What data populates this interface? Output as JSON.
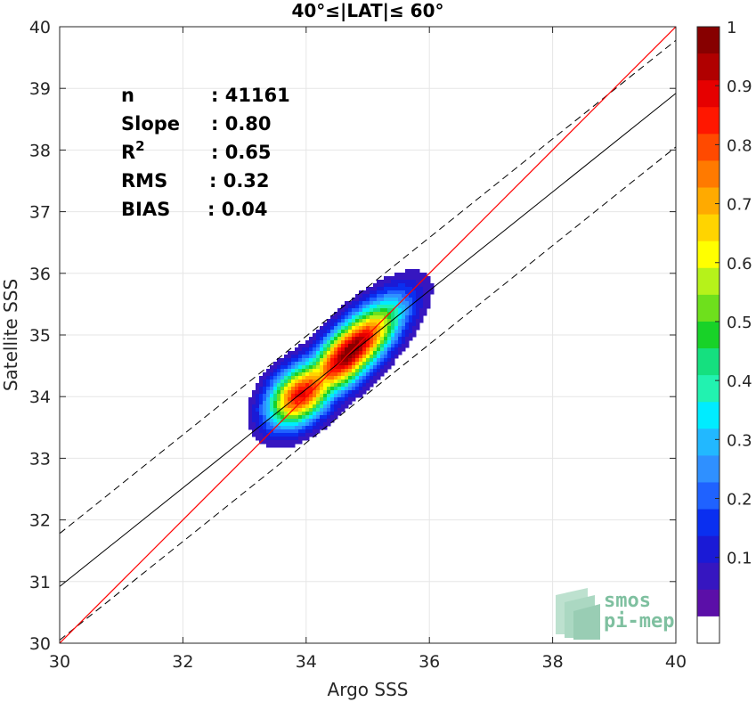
{
  "chart_data": {
    "type": "contour",
    "title": "40°≤|LAT|≤ 60°",
    "xlabel": "Argo SSS",
    "ylabel": "Satellite SSS",
    "xlim": [
      30,
      40
    ],
    "ylim": [
      30,
      40
    ],
    "xticks": [
      "30",
      "32",
      "34",
      "36",
      "38",
      "40"
    ],
    "yticks": [
      "30",
      "31",
      "32",
      "33",
      "34",
      "35",
      "36",
      "37",
      "38",
      "39",
      "40"
    ],
    "grid": true,
    "stats": [
      {
        "label": "n",
        "sep": ":",
        "value": "41161"
      },
      {
        "label": "Slope",
        "sep": ":",
        "value": "0.80"
      },
      {
        "label": "R",
        "sup": "2",
        "sep": ":",
        "value": "0.65"
      },
      {
        "label": "RMS",
        "sep": ":",
        "value": "0.32"
      },
      {
        "label": "BIAS",
        "sep": ":",
        "value": "0.04"
      }
    ],
    "lines": {
      "identity": {
        "slope": 1.0,
        "intercept": 0.0,
        "color": "#ff0000"
      },
      "fit": {
        "slope": 0.8,
        "intercept": 6.92,
        "color": "#000000"
      },
      "upper_dashed": {
        "slope": 0.8,
        "intercept": 7.78
      },
      "lower_dashed": {
        "slope": 0.8,
        "intercept": 6.05
      }
    },
    "density_peaks": [
      {
        "x": 34.72,
        "y": 34.73,
        "value": 1.0
      },
      {
        "x": 33.85,
        "y": 34.0,
        "value": 0.7
      }
    ],
    "colorbar": {
      "min": 0,
      "max": 1,
      "ticks": [
        "0.1",
        "0.2",
        "0.3",
        "0.4",
        "0.5",
        "0.6",
        "0.7",
        "0.8",
        "0.9",
        "1"
      ],
      "colors": [
        "#ffffff",
        "#5b0fa8",
        "#3616c0",
        "#1a1ad6",
        "#0a2ff0",
        "#1f62ff",
        "#2f90ff",
        "#22b8ff",
        "#00ecff",
        "#22f2b0",
        "#15e07f",
        "#18d228",
        "#6ee01c",
        "#b6f21a",
        "#ffff00",
        "#ffd400",
        "#ffaa00",
        "#ff7a00",
        "#ff4a00",
        "#ff1700",
        "#e60000",
        "#b00000",
        "#870000"
      ]
    },
    "logo": {
      "line1": "smos",
      "line2": "pi-mep"
    }
  }
}
